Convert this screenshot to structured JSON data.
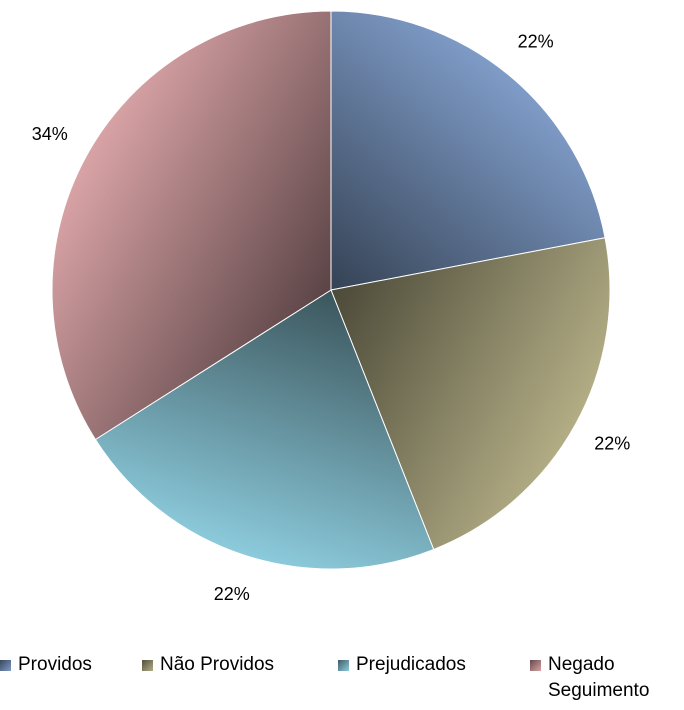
{
  "chart_data": {
    "type": "pie",
    "categories": [
      "Providos",
      "Não Providos",
      "Prejudicados",
      "Negado Seguimento"
    ],
    "values": [
      22,
      22,
      22,
      34
    ],
    "value_labels": [
      "22%",
      "22%",
      "22%",
      "34%"
    ],
    "colors": [
      "#7f9cc8",
      "#b3ad85",
      "#8ccbdc",
      "#d9a3a6"
    ]
  }
}
